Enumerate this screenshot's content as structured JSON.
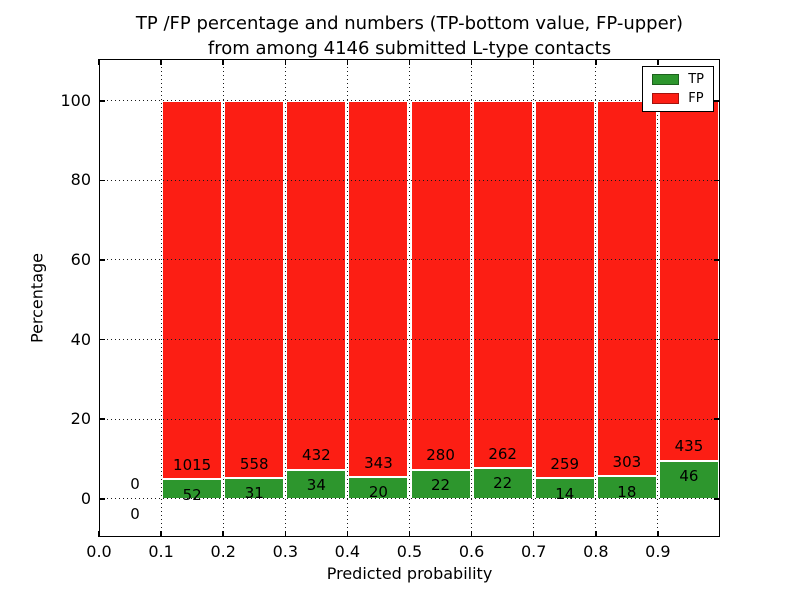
{
  "title": {
    "line1": "TP /FP percentage and numbers (TP-bottom value, FP-upper)",
    "line2": "from among 4146 submitted L-type contacts"
  },
  "axes": {
    "xlabel": "Predicted probability",
    "ylabel": "Percentage",
    "x_tick_labels": [
      "0.0",
      "0.1",
      "0.2",
      "0.3",
      "0.4",
      "0.5",
      "0.6",
      "0.7",
      "0.8",
      "0.9"
    ],
    "y_tick_labels": [
      "0",
      "20",
      "40",
      "60",
      "80",
      "100"
    ]
  },
  "legend": {
    "items": [
      {
        "label": "TP",
        "color": "#2d962d"
      },
      {
        "label": "FP",
        "color": "#fc1e14"
      }
    ]
  },
  "chart_data": {
    "type": "bar",
    "stacked": true,
    "title": "TP /FP percentage and numbers (TP-bottom value, FP-upper) from among 4146 submitted L-type contacts",
    "xlabel": "Predicted probability",
    "ylabel": "Percentage",
    "total_submitted_contacts": 4146,
    "xlim": [
      0.0,
      1.0
    ],
    "ylim": [
      -9.6,
      110.5
    ],
    "x_tick_values": [
      0.0,
      0.1,
      0.2,
      0.3,
      0.4,
      0.5,
      0.6,
      0.7,
      0.8,
      0.9
    ],
    "y_tick_values": [
      0,
      20,
      40,
      60,
      80,
      100
    ],
    "grid": true,
    "grid_style": "dotted",
    "legend_position": "upper right",
    "bar_bin_width": 0.1,
    "units": "bars show TP and FP as stacked percentage of each bin total (sums to 100%); annotated numbers are raw counts (TP bottom, FP upper)",
    "bins": [
      {
        "x_start": 0.0,
        "x_end": 0.1,
        "tp": 0,
        "fp": 0
      },
      {
        "x_start": 0.1,
        "x_end": 0.2,
        "tp": 52,
        "fp": 1015
      },
      {
        "x_start": 0.2,
        "x_end": 0.3,
        "tp": 31,
        "fp": 558
      },
      {
        "x_start": 0.3,
        "x_end": 0.4,
        "tp": 34,
        "fp": 432
      },
      {
        "x_start": 0.4,
        "x_end": 0.5,
        "tp": 20,
        "fp": 343
      },
      {
        "x_start": 0.5,
        "x_end": 0.6,
        "tp": 22,
        "fp": 280
      },
      {
        "x_start": 0.6,
        "x_end": 0.7,
        "tp": 22,
        "fp": 262
      },
      {
        "x_start": 0.7,
        "x_end": 0.8,
        "tp": 14,
        "fp": 259
      },
      {
        "x_start": 0.8,
        "x_end": 0.9,
        "tp": 18,
        "fp": 303
      },
      {
        "x_start": 0.9,
        "x_end": 1.0,
        "tp": 46,
        "fp": 435
      }
    ],
    "series": [
      {
        "name": "TP",
        "color": "#2d962d",
        "values": [
          0,
          52,
          31,
          34,
          20,
          22,
          22,
          14,
          18,
          46
        ]
      },
      {
        "name": "FP",
        "color": "#fc1e14",
        "values": [
          0,
          1015,
          558,
          432,
          343,
          280,
          262,
          259,
          303,
          435
        ]
      }
    ]
  }
}
